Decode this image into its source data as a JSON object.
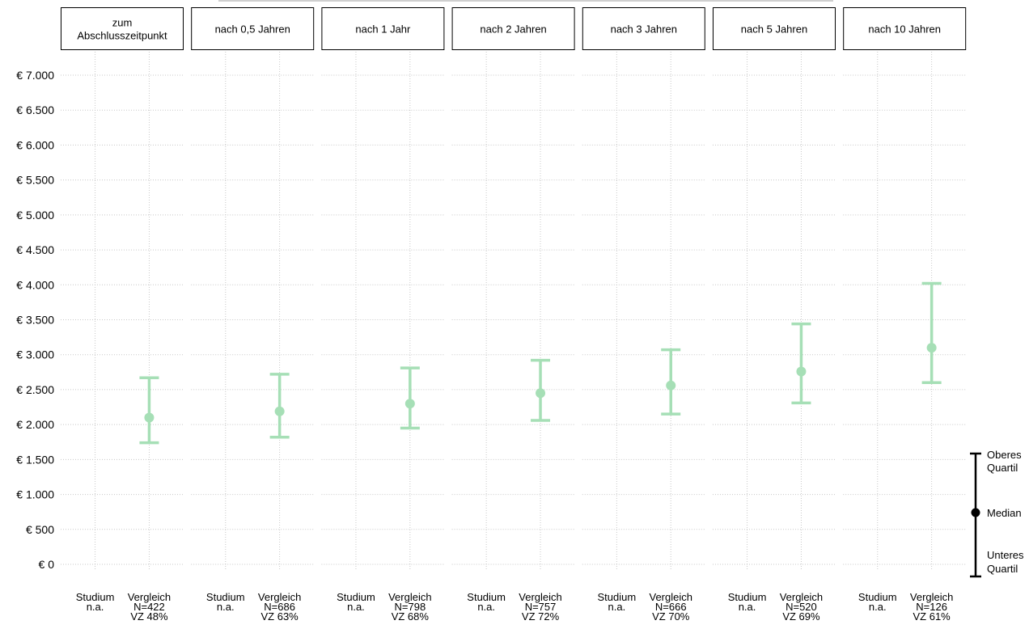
{
  "chart_data": {
    "type": "errorbar",
    "title": "",
    "xlabel": "",
    "ylabel": "",
    "ylim": [
      0,
      7000
    ],
    "y_tick_labels": [
      "€ 0",
      "€ 500",
      "€ 1.000",
      "€ 1.500",
      "€ 2.000",
      "€ 2.500",
      "€ 3.000",
      "€ 3.500",
      "€ 4.000",
      "€ 4.500",
      "€ 5.000",
      "€ 5.500",
      "€ 6.000",
      "€ 6.500",
      "€ 7.000"
    ],
    "y_tick_values": [
      0,
      500,
      1000,
      1500,
      2000,
      2500,
      3000,
      3500,
      4000,
      4500,
      5000,
      5500,
      6000,
      6500,
      7000
    ],
    "grid": "dotted",
    "series_color": "#a6dfb6",
    "panels": [
      {
        "facet": [
          "zum",
          "Abschlusszeitpunkt"
        ],
        "studium": [
          "Studium",
          "n.a."
        ],
        "vergleich": [
          "Vergleich",
          "N=422",
          "VZ 48%"
        ],
        "median": 2100,
        "lower": 1740,
        "upper": 2670
      },
      {
        "facet": [
          "nach 0,5 Jahren"
        ],
        "studium": [
          "Studium",
          "n.a."
        ],
        "vergleich": [
          "Vergleich",
          "N=686",
          "VZ 63%"
        ],
        "median": 2190,
        "lower": 1820,
        "upper": 2720
      },
      {
        "facet": [
          "nach 1 Jahr"
        ],
        "studium": [
          "Studium",
          "n.a."
        ],
        "vergleich": [
          "Vergleich",
          "N=798",
          "VZ 68%"
        ],
        "median": 2300,
        "lower": 1950,
        "upper": 2810
      },
      {
        "facet": [
          "nach 2 Jahren"
        ],
        "studium": [
          "Studium",
          "n.a."
        ],
        "vergleich": [
          "Vergleich",
          "N=757",
          "VZ 72%"
        ],
        "median": 2450,
        "lower": 2060,
        "upper": 2920
      },
      {
        "facet": [
          "nach 3 Jahren"
        ],
        "studium": [
          "Studium",
          "n.a."
        ],
        "vergleich": [
          "Vergleich",
          "N=666",
          "VZ 70%"
        ],
        "median": 2560,
        "lower": 2150,
        "upper": 3070
      },
      {
        "facet": [
          "nach 5 Jahren"
        ],
        "studium": [
          "Studium",
          "n.a."
        ],
        "vergleich": [
          "Vergleich",
          "N=520",
          "VZ 69%"
        ],
        "median": 2760,
        "lower": 2310,
        "upper": 3440
      },
      {
        "facet": [
          "nach 10 Jahren"
        ],
        "studium": [
          "Studium",
          "n.a."
        ],
        "vergleich": [
          "Vergleich",
          "N=126",
          "VZ 61%"
        ],
        "median": 3100,
        "lower": 2600,
        "upper": 4020
      }
    ],
    "legend": {
      "position": "right",
      "upper": [
        "Oberes",
        "Quartil"
      ],
      "median": [
        "Median"
      ],
      "lower": [
        "Unteres",
        "Quartil"
      ]
    }
  }
}
